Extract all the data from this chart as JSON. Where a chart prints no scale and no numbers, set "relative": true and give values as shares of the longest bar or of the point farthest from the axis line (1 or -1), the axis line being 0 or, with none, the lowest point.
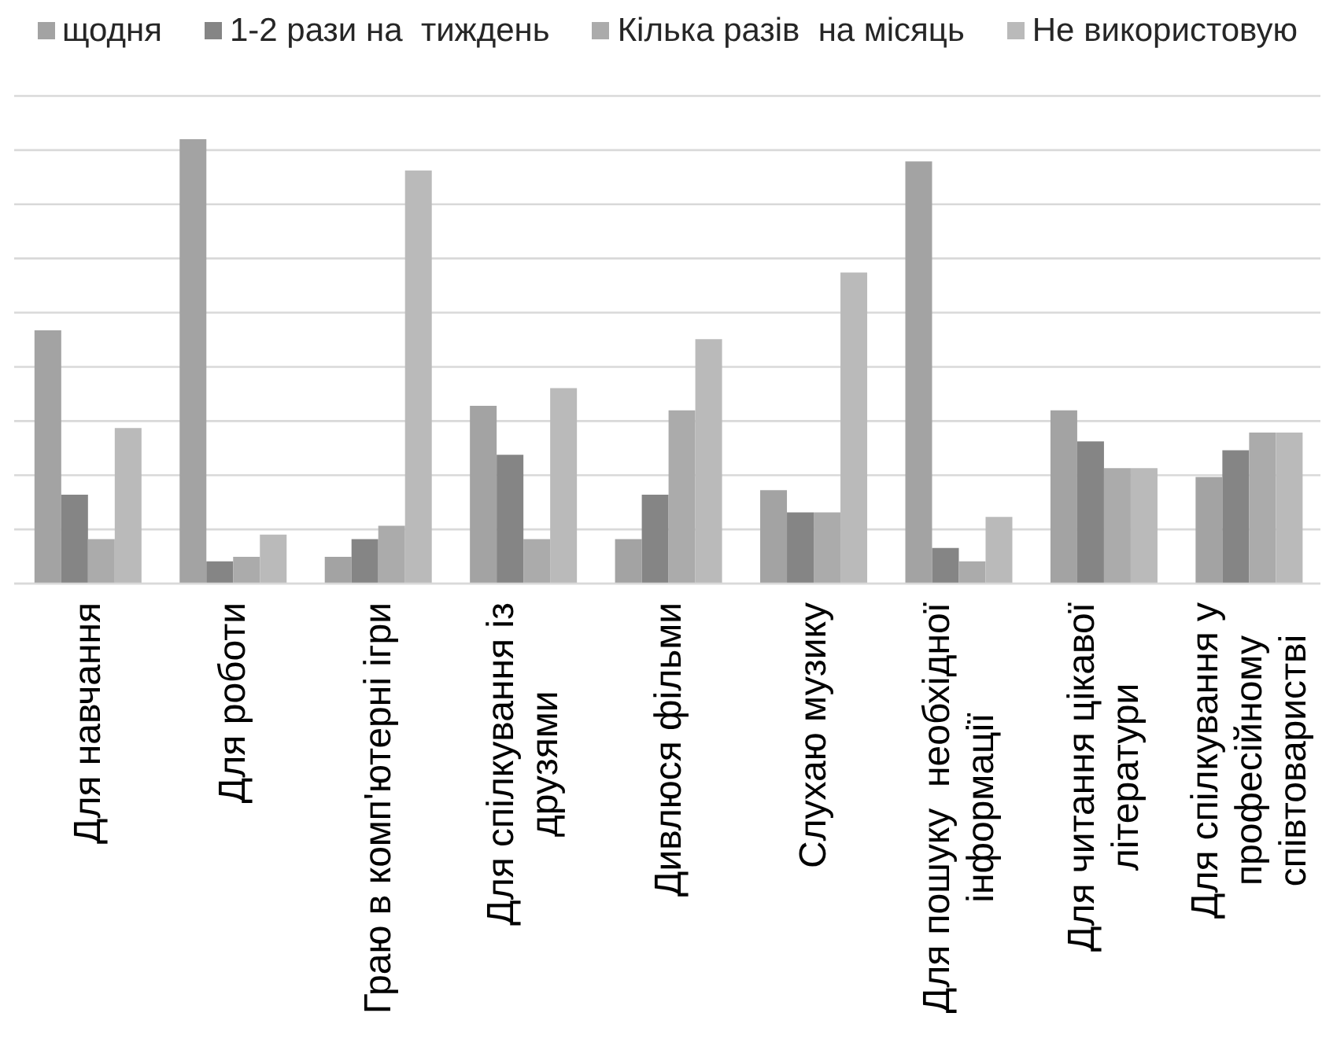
{
  "chart_data": {
    "type": "bar",
    "relative": true,
    "grid": "y",
    "legend": "top",
    "categories": [
      "Для навчання",
      "Для роботи",
      "Граю в комп'ютерні ігри",
      "Для спілкування із друзями",
      "Дивлюся фільми",
      "Слухаю музику",
      "Для пошуку  необхідної інформації",
      "Для читання цікавої літератури",
      "Для спілкування у професійному співтоваристві"
    ],
    "series": [
      {
        "name": "щодня",
        "color": "#a3a3a3",
        "values": [
          0.57,
          1,
          0.06,
          0.4,
          0.1,
          0.21,
          0.95,
          0.39,
          0.24
        ]
      },
      {
        "name": "1-2 рази на  тиждень",
        "color": "#858585",
        "values": [
          0.2,
          0.05,
          0.1,
          0.29,
          0.2,
          0.16,
          0.08,
          0.32,
          0.3
        ]
      },
      {
        "name": "Кілька разів  на місяць",
        "color": "#ababab",
        "values": [
          0.1,
          0.06,
          0.13,
          0.1,
          0.39,
          0.16,
          0.05,
          0.26,
          0.34
        ]
      },
      {
        "name": "Не використовую",
        "color": "#bababa",
        "values": [
          0.35,
          0.11,
          0.93,
          0.44,
          0.55,
          0.7,
          0.15,
          0.26,
          0.34
        ]
      }
    ]
  }
}
